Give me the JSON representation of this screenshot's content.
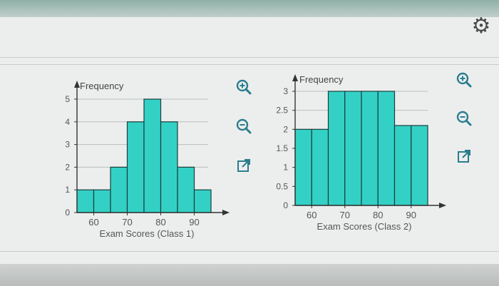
{
  "settings_icon": "gear-icon",
  "toolbar_icons": [
    "zoom-in-icon",
    "zoom-out-icon",
    "open-external-icon"
  ],
  "colors": {
    "bar_fill": "#33d1c5",
    "bar_stroke": "#1a3f3d",
    "axis": "#333333",
    "icon": "#2a7d8e"
  },
  "chart_data": [
    {
      "type": "bar",
      "ylabel": "Frequency",
      "xlabel": "Exam Scores (Class 1)",
      "bins": [
        {
          "from": 55,
          "to": 60,
          "value": 1
        },
        {
          "from": 60,
          "to": 65,
          "value": 1
        },
        {
          "from": 65,
          "to": 70,
          "value": 2
        },
        {
          "from": 70,
          "to": 75,
          "value": 4
        },
        {
          "from": 75,
          "to": 80,
          "value": 5
        },
        {
          "from": 80,
          "to": 85,
          "value": 4
        },
        {
          "from": 85,
          "to": 90,
          "value": 2
        },
        {
          "from": 90,
          "to": 95,
          "value": 1
        }
      ],
      "x_ticks": [
        "60",
        "70",
        "80",
        "90"
      ],
      "y_ticks": [
        "0",
        "1",
        "2",
        "3",
        "4",
        "5"
      ],
      "xlim": [
        55,
        95
      ],
      "ylim": [
        0,
        5
      ],
      "grid": true
    },
    {
      "type": "bar",
      "ylabel": "Frequency",
      "xlabel": "Exam Scores (Class 2)",
      "bins": [
        {
          "from": 55,
          "to": 60,
          "value": 2
        },
        {
          "from": 60,
          "to": 65,
          "value": 2
        },
        {
          "from": 65,
          "to": 70,
          "value": 3
        },
        {
          "from": 70,
          "to": 75,
          "value": 3
        },
        {
          "from": 75,
          "to": 80,
          "value": 3
        },
        {
          "from": 80,
          "to": 85,
          "value": 3
        },
        {
          "from": 85,
          "to": 90,
          "value": 2.1
        },
        {
          "from": 90,
          "to": 95,
          "value": 2.1
        }
      ],
      "x_ticks": [
        "60",
        "70",
        "80",
        "90"
      ],
      "y_ticks": [
        "0",
        "0.5",
        "1",
        "1.5",
        "2",
        "2.5",
        "3"
      ],
      "xlim": [
        55,
        95
      ],
      "ylim": [
        0,
        3
      ],
      "grid": true
    }
  ]
}
